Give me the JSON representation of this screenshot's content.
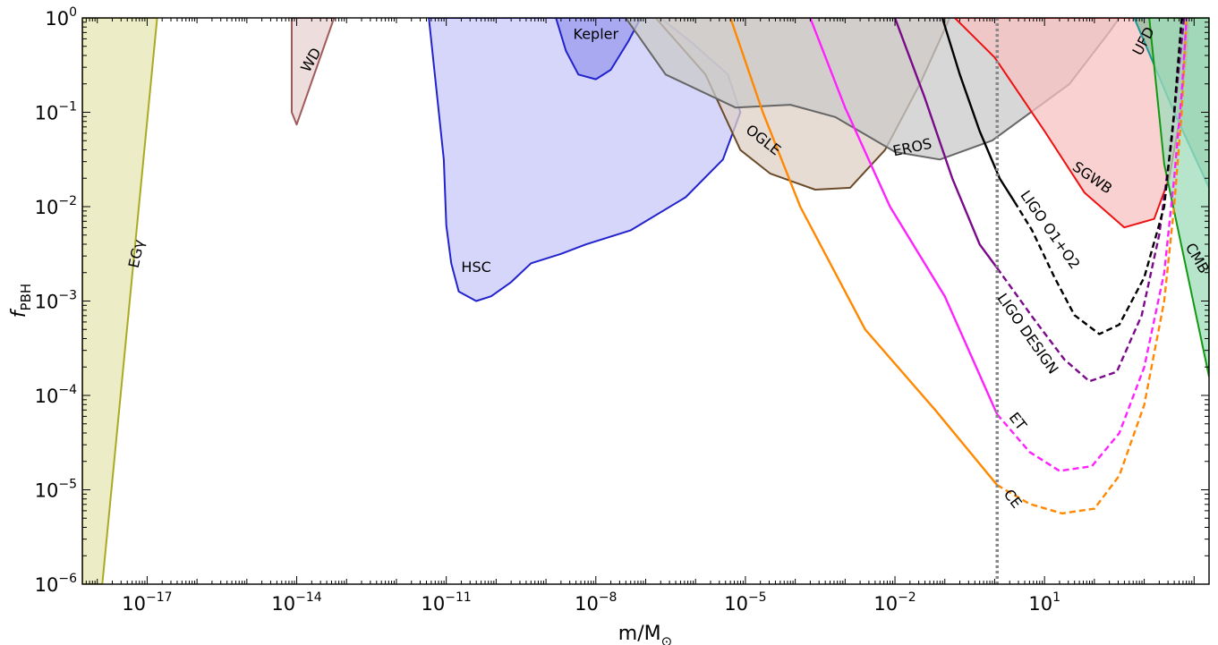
{
  "chart_data": {
    "type": "area",
    "title": "",
    "xlabel": "m/M",
    "xlabel_sub": "⊙",
    "ylabel": "f",
    "ylabel_sub": "PBH",
    "xscale": "log",
    "yscale": "log",
    "xlim_log10": [
      -18.3,
      4.3
    ],
    "ylim_log10": [
      -6,
      0
    ],
    "x_ticks": [
      {
        "base": "10",
        "exp": "−17",
        "log10": -17
      },
      {
        "base": "10",
        "exp": "−14",
        "log10": -14
      },
      {
        "base": "10",
        "exp": "−11",
        "log10": -11
      },
      {
        "base": "10",
        "exp": "−8",
        "log10": -8
      },
      {
        "base": "10",
        "exp": "−5",
        "log10": -5
      },
      {
        "base": "10",
        "exp": "−2",
        "log10": -2
      },
      {
        "base": "10",
        "exp": "1",
        "log10": 1
      }
    ],
    "y_ticks": [
      {
        "base": "10",
        "exp": "0",
        "log10": 0,
        "plain": "1"
      },
      {
        "base": "10",
        "exp": "−1",
        "log10": -1
      },
      {
        "base": "10",
        "exp": "−2",
        "log10": -2
      },
      {
        "base": "10",
        "exp": "−3",
        "log10": -3
      },
      {
        "base": "10",
        "exp": "−4",
        "log10": -4
      },
      {
        "base": "10",
        "exp": "−5",
        "log10": -5
      },
      {
        "base": "10",
        "exp": "−6",
        "log10": -6
      }
    ],
    "regions": [
      {
        "name": "EGγ",
        "fill": "#e6e6b3",
        "stroke": "#aaaa22",
        "points_log10": [
          [
            -18.3,
            -6
          ],
          [
            -18.3,
            0
          ],
          [
            -16.8,
            0
          ],
          [
            -17.9,
            -6
          ]
        ],
        "label_pos_log10": [
          -17.2,
          -2.5
        ],
        "label_rotate": -78
      },
      {
        "name": "WD",
        "fill": "#e8d2d2",
        "stroke": "#a05a5a",
        "points_log10": [
          [
            -14.1,
            -1
          ],
          [
            -14,
            -1.13
          ],
          [
            -13.25,
            0
          ],
          [
            -14.1,
            0
          ]
        ],
        "label_pos_log10": [
          -13.7,
          -0.45
        ],
        "label_rotate": -60
      },
      {
        "name": "HSC",
        "fill": "#c8c8f8",
        "stroke": "#2222cc",
        "points_log10": [
          [
            -11.35,
            0
          ],
          [
            -11.05,
            -1.5
          ],
          [
            -11,
            -2.2
          ],
          [
            -10.9,
            -2.6
          ],
          [
            -10.75,
            -2.9
          ],
          [
            -10.4,
            -3.0
          ],
          [
            -10.1,
            -2.95
          ],
          [
            -9.7,
            -2.8
          ],
          [
            -9.3,
            -2.6
          ],
          [
            -8.7,
            -2.5
          ],
          [
            -8.2,
            -2.4
          ],
          [
            -7.3,
            -2.25
          ],
          [
            -6.2,
            -1.9
          ],
          [
            -5.45,
            -1.5
          ],
          [
            -5.1,
            -1.0
          ],
          [
            -5.35,
            -0.6
          ],
          [
            -6.1,
            -0.25
          ],
          [
            -6.7,
            0
          ]
        ],
        "label_pos_log10": [
          -10.4,
          -2.65
        ],
        "label_rotate": 0
      },
      {
        "name": "Kepler",
        "fill": "#9999ee",
        "stroke": "#2222cc",
        "points_log10": [
          [
            -8.8,
            0
          ],
          [
            -8.6,
            -0.35
          ],
          [
            -8.35,
            -0.6
          ],
          [
            -8,
            -0.65
          ],
          [
            -7.7,
            -0.55
          ],
          [
            -7.35,
            -0.25
          ],
          [
            -7.1,
            0
          ]
        ],
        "label_pos_log10": [
          -8.0,
          -0.18
        ],
        "label_rotate": 0
      },
      {
        "name": "OGLE",
        "fill": "#ddd0c5",
        "stroke": "#6b4a2a",
        "points_log10": [
          [
            -6.8,
            0
          ],
          [
            -5.8,
            -0.6
          ],
          [
            -5.1,
            -1.4
          ],
          [
            -4.5,
            -1.65
          ],
          [
            -3.6,
            -1.82
          ],
          [
            -2.9,
            -1.8
          ],
          [
            -2.2,
            -1.4
          ],
          [
            -1.5,
            -0.7
          ],
          [
            -0.9,
            0
          ]
        ],
        "label_pos_log10": [
          -4.65,
          -1.3
        ],
        "label_rotate": 38
      },
      {
        "name": "EROS",
        "fill": "#cacaca",
        "stroke": "#666666",
        "points_log10": [
          [
            -7.4,
            0
          ],
          [
            -6.6,
            -0.6
          ],
          [
            -5.2,
            -0.95
          ],
          [
            -4.1,
            -0.92
          ],
          [
            -3.2,
            -1.05
          ],
          [
            -2.0,
            -1.42
          ],
          [
            -1.1,
            -1.5
          ],
          [
            -0.05,
            -1.3
          ],
          [
            1.5,
            -0.7
          ],
          [
            2.3,
            -0.15
          ],
          [
            2.5,
            0
          ]
        ],
        "label_pos_log10": [
          -1.65,
          -1.38
        ],
        "label_rotate": -12
      },
      {
        "name": "SGWB",
        "fill": "#f8c2c2",
        "stroke": "#ee1111",
        "points_log10": [
          [
            -0.8,
            0
          ],
          [
            0,
            -0.42
          ],
          [
            1.0,
            -1.2
          ],
          [
            1.8,
            -1.85
          ],
          [
            2.6,
            -2.22
          ],
          [
            3.2,
            -2.13
          ],
          [
            3.5,
            -1.7
          ],
          [
            3.7,
            -1.1
          ],
          [
            3.85,
            -0.4
          ],
          [
            3.9,
            0
          ]
        ],
        "label_pos_log10": [
          1.95,
          -1.7
        ],
        "label_rotate": 35
      },
      {
        "name": "UFD",
        "fill": "#8fba9a",
        "stroke": "#1a9a9a",
        "points_log10": [
          [
            2.8,
            0
          ],
          [
            3.6,
            -1.0
          ],
          [
            4.3,
            -1.8
          ],
          [
            4.3,
            0
          ]
        ],
        "label_pos_log10": [
          3.0,
          -0.25
        ],
        "label_rotate": -62
      },
      {
        "name": "CMB",
        "fill": "#9edcbb",
        "stroke": "#119911",
        "points_log10": [
          [
            3.1,
            0
          ],
          [
            3.4,
            -1.55
          ],
          [
            4.3,
            -3.8
          ],
          [
            4.3,
            0
          ]
        ],
        "label_pos_log10": [
          4.05,
          -2.55
        ],
        "label_rotate": 60
      }
    ],
    "lines": [
      {
        "name": "CE",
        "color": "#ff8800",
        "solid_log10": [
          [
            -5.3,
            0
          ],
          [
            -4.65,
            -1.0
          ],
          [
            -3.9,
            -2.0
          ],
          [
            -2.6,
            -3.3
          ],
          [
            -1.2,
            -4.15
          ],
          [
            0.05,
            -4.95
          ]
        ],
        "dashed_log10": [
          [
            0.05,
            -4.95
          ],
          [
            0.7,
            -5.15
          ],
          [
            1.35,
            -5.25
          ],
          [
            2.0,
            -5.2
          ],
          [
            2.5,
            -4.85
          ],
          [
            3.0,
            -4.1
          ],
          [
            3.4,
            -3.0
          ],
          [
            3.6,
            -2.0
          ],
          [
            3.75,
            -1.0
          ],
          [
            3.85,
            0
          ]
        ],
        "label_pos_log10": [
          0.35,
          -5.1
        ],
        "label_rotate": 52
      },
      {
        "name": "ET",
        "color": "#ff22ff",
        "solid_log10": [
          [
            -3.7,
            0
          ],
          [
            -3.0,
            -0.95
          ],
          [
            -2.1,
            -2.0
          ],
          [
            -1.0,
            -2.95
          ],
          [
            0.05,
            -4.2
          ]
        ],
        "dashed_log10": [
          [
            0.05,
            -4.2
          ],
          [
            0.7,
            -4.6
          ],
          [
            1.3,
            -4.8
          ],
          [
            1.95,
            -4.75
          ],
          [
            2.5,
            -4.4
          ],
          [
            3.0,
            -3.7
          ],
          [
            3.4,
            -2.7
          ],
          [
            3.6,
            -1.7
          ],
          [
            3.75,
            -0.8
          ],
          [
            3.85,
            0
          ]
        ],
        "label_pos_log10": [
          0.45,
          -4.28
        ],
        "label_rotate": 52
      },
      {
        "name": "LIGO DESIGN",
        "color": "#7a0a8a",
        "solid_log10": [
          [
            -2.0,
            0
          ],
          [
            -1.4,
            -0.85
          ],
          [
            -0.85,
            -1.7
          ],
          [
            -0.3,
            -2.4
          ],
          [
            0.05,
            -2.65
          ]
        ],
        "dashed_log10": [
          [
            0.05,
            -2.65
          ],
          [
            0.8,
            -3.2
          ],
          [
            1.4,
            -3.62
          ],
          [
            1.9,
            -3.85
          ],
          [
            2.45,
            -3.75
          ],
          [
            2.95,
            -3.15
          ],
          [
            3.3,
            -2.3
          ],
          [
            3.55,
            -1.3
          ],
          [
            3.7,
            -0.5
          ],
          [
            3.8,
            0
          ]
        ],
        "label_pos_log10": [
          0.65,
          -3.35
        ],
        "label_rotate": 55
      },
      {
        "name": "LIGO O1+O2",
        "color": "#000000",
        "solid_log10": [
          [
            -1.05,
            0
          ],
          [
            -0.7,
            -0.6
          ],
          [
            -0.3,
            -1.2
          ],
          [
            0.1,
            -1.7
          ],
          [
            0.4,
            -1.95
          ]
        ],
        "dashed_log10": [
          [
            0.4,
            -1.95
          ],
          [
            0.75,
            -2.25
          ],
          [
            1.2,
            -2.75
          ],
          [
            1.6,
            -3.15
          ],
          [
            2.1,
            -3.35
          ],
          [
            2.5,
            -3.25
          ],
          [
            3.0,
            -2.75
          ],
          [
            3.4,
            -2.0
          ],
          [
            3.6,
            -1.0
          ],
          [
            3.75,
            0
          ]
        ],
        "label_pos_log10": [
          1.1,
          -2.25
        ],
        "label_rotate": 55
      }
    ],
    "reference_line": {
      "x_log10": 0.05,
      "style": "dotted",
      "color": "#888888"
    },
    "grid": false,
    "legend": "none"
  }
}
